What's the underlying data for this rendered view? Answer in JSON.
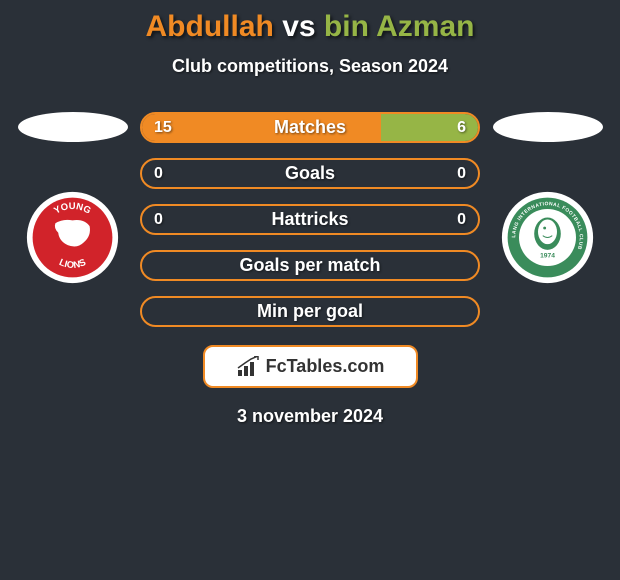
{
  "title": {
    "left": "Abdullah",
    "vs": "vs",
    "right": "bin Azman"
  },
  "title_colors": {
    "left": "#f08a24",
    "vs": "#ffffff",
    "right": "#96b546"
  },
  "subtitle": "Club competitions, Season 2024",
  "background_color": "#2a3038",
  "bar_style": {
    "border_color": "#f08a24",
    "left_fill": "#f08a24",
    "right_fill": "#96b546",
    "border_radius": 16,
    "height": 31,
    "label_fontsize": 18,
    "value_fontsize": 16
  },
  "avatars": {
    "left": {
      "bg": "#ffffff"
    },
    "right": {
      "bg": "#ffffff"
    }
  },
  "crests": {
    "left": {
      "outer_bg": "#ffffff",
      "inner_bg": "#d1232a",
      "text_top": "YOUNG",
      "text_bottom": "LIONS",
      "icon_color": "#ffffff"
    },
    "right": {
      "outer_bg": "#ffffff",
      "inner_bg": "#3a8c5b",
      "text_ring": "GEYLANG INTERNATIONAL FOOTBALL CLUB",
      "year": "1974",
      "icon_color": "#ffffff"
    }
  },
  "bars": [
    {
      "label": "Matches",
      "left_value": "15",
      "right_value": "6",
      "left_pct": 71,
      "right_pct": 29
    },
    {
      "label": "Goals",
      "left_value": "0",
      "right_value": "0",
      "left_pct": 0,
      "right_pct": 0
    },
    {
      "label": "Hattricks",
      "left_value": "0",
      "right_value": "0",
      "left_pct": 0,
      "right_pct": 0
    },
    {
      "label": "Goals per match",
      "left_value": "",
      "right_value": "",
      "left_pct": 0,
      "right_pct": 0
    },
    {
      "label": "Min per goal",
      "left_value": "",
      "right_value": "",
      "left_pct": 0,
      "right_pct": 0
    }
  ],
  "branding": {
    "text": "FcTables.com",
    "bar_color": "#333333"
  },
  "date": "3 november 2024"
}
